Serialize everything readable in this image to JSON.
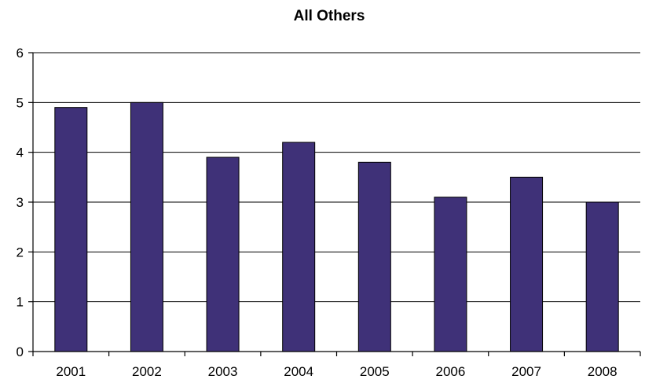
{
  "chart_data": {
    "type": "bar",
    "title": "All Others",
    "categories": [
      "2001",
      "2002",
      "2003",
      "2004",
      "2005",
      "2006",
      "2007",
      "2008"
    ],
    "values": [
      4.9,
      5.0,
      3.9,
      4.2,
      3.8,
      3.1,
      3.5,
      3.0
    ],
    "ylim": [
      0,
      6
    ],
    "yticks": [
      "0",
      "1",
      "2",
      "3",
      "4",
      "5",
      "6"
    ],
    "grid": true,
    "legend": "none",
    "bar_color": "#3f3178"
  }
}
